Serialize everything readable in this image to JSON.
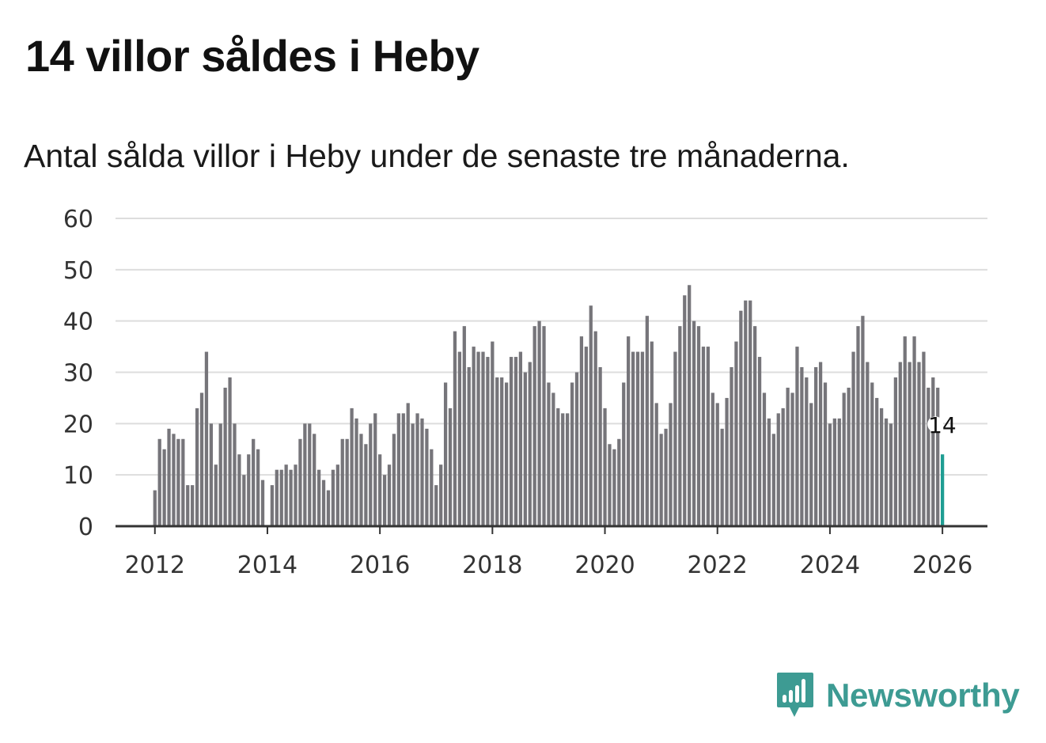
{
  "header": {
    "title": "14 villor såldes i Heby",
    "subtitle": "Antal sålda villor i Heby under de senaste tre månaderna."
  },
  "brand": {
    "name": "Newsworthy",
    "icon": "newsworthy-bar-chart-logo-icon",
    "color": "#3d9b93"
  },
  "colors": {
    "bar": "#76757a",
    "highlight": "#1f9e93",
    "grid": "#dddddd",
    "axis": "#333333"
  },
  "chart_data": {
    "type": "bar",
    "title": "14 villor såldes i Heby",
    "subtitle": "Antal sålda villor i Heby under de senaste tre månaderna.",
    "xlabel": "",
    "ylabel": "",
    "x_start": "2012-01",
    "x_end": "2026-01",
    "x_step": "month",
    "xlim": [
      2011.3,
      2026.8
    ],
    "ylim": [
      0,
      60
    ],
    "yticks": [
      0,
      10,
      20,
      30,
      40,
      50,
      60
    ],
    "xticks": [
      "2012",
      "2014",
      "2016",
      "2018",
      "2020",
      "2022",
      "2024",
      "2026"
    ],
    "grid": true,
    "legend": "none",
    "highlight_label": "14",
    "values": [
      7,
      17,
      15,
      19,
      18,
      17,
      17,
      8,
      8,
      23,
      26,
      34,
      20,
      12,
      20,
      27,
      29,
      20,
      14,
      10,
      14,
      17,
      15,
      9,
      0,
      8,
      11,
      11,
      12,
      11,
      12,
      17,
      20,
      20,
      18,
      11,
      9,
      7,
      11,
      12,
      17,
      17,
      23,
      21,
      18,
      16,
      20,
      22,
      14,
      10,
      12,
      18,
      22,
      22,
      24,
      20,
      22,
      21,
      19,
      15,
      8,
      12,
      28,
      23,
      38,
      34,
      39,
      31,
      35,
      34,
      34,
      33,
      36,
      29,
      29,
      28,
      33,
      33,
      34,
      30,
      32,
      39,
      40,
      39,
      28,
      26,
      23,
      22,
      22,
      28,
      30,
      37,
      35,
      43,
      38,
      31,
      23,
      16,
      15,
      17,
      28,
      37,
      34,
      34,
      34,
      41,
      36,
      24,
      18,
      19,
      24,
      34,
      39,
      45,
      47,
      40,
      39,
      35,
      35,
      26,
      24,
      19,
      25,
      31,
      36,
      42,
      44,
      44,
      39,
      33,
      26,
      21,
      18,
      22,
      23,
      27,
      26,
      35,
      31,
      29,
      24,
      31,
      32,
      28,
      20,
      21,
      21,
      26,
      27,
      34,
      39,
      41,
      32,
      28,
      25,
      23,
      21,
      20,
      29,
      32,
      37,
      32,
      37,
      32,
      34,
      27,
      29,
      27,
      14
    ]
  }
}
